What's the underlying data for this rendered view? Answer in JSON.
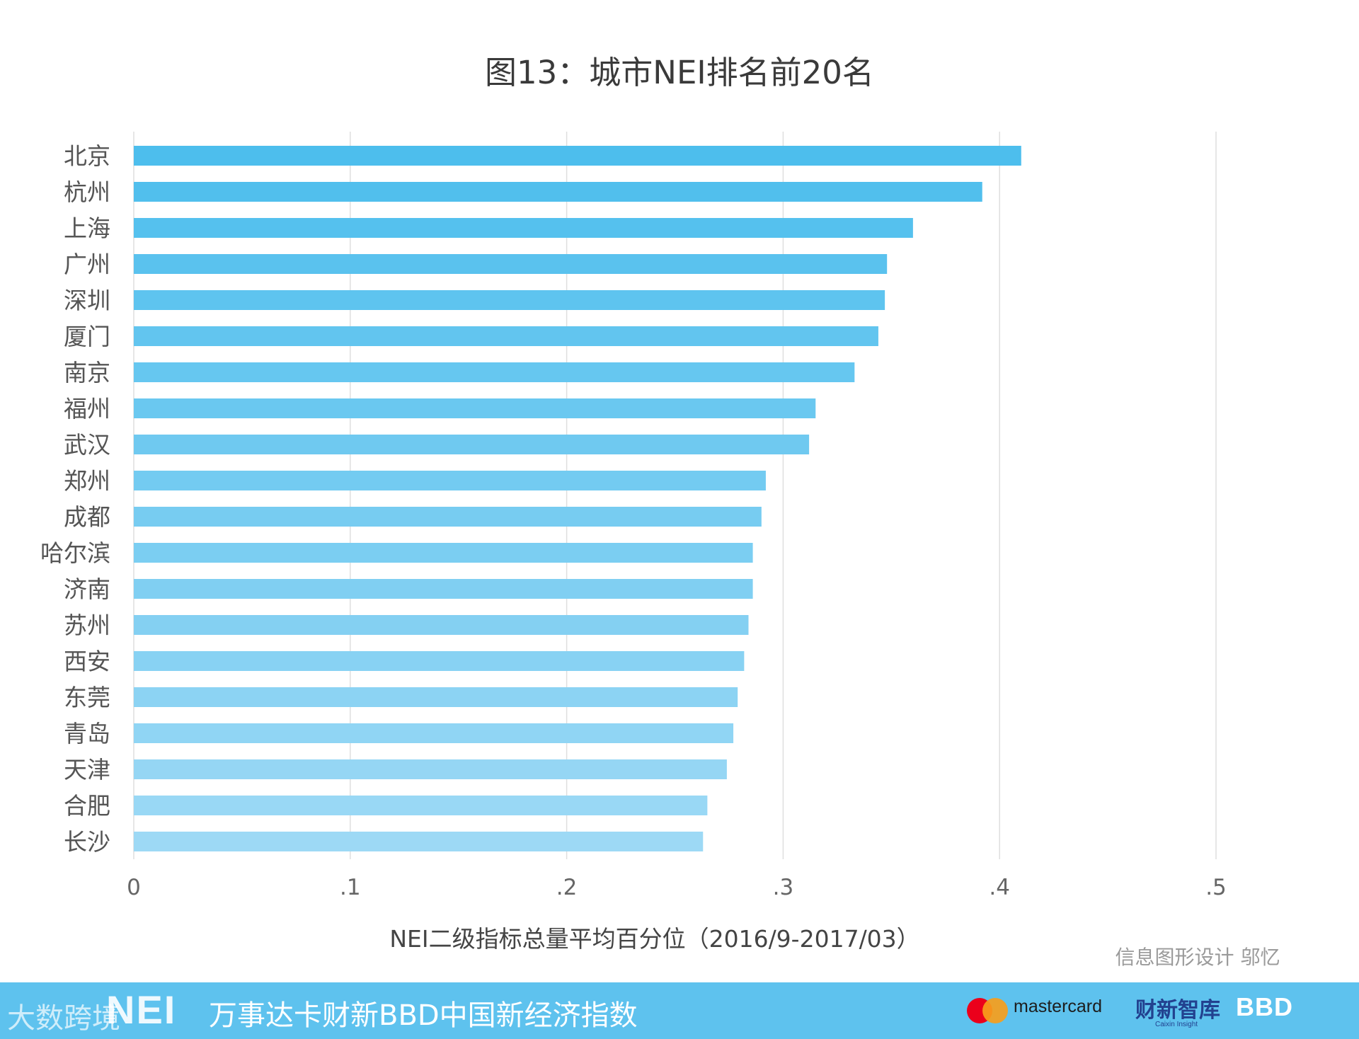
{
  "chart_data": {
    "type": "bar",
    "orientation": "horizontal",
    "title": "图13：城市NEI排名前20名",
    "xlabel": "NEI二级指标总量平均百分位（2016/9-2017/03）",
    "ylabel": "",
    "xlim": [
      0,
      0.5
    ],
    "xticks": [
      0,
      0.1,
      0.2,
      0.3,
      0.4,
      0.5
    ],
    "xtick_labels": [
      "0",
      ".1",
      ".2",
      ".3",
      ".4",
      ".5"
    ],
    "grid": true,
    "categories": [
      "北京",
      "杭州",
      "上海",
      "广州",
      "深圳",
      "厦门",
      "南京",
      "福州",
      "武汉",
      "郑州",
      "成都",
      "哈尔滨",
      "济南",
      "苏州",
      "西安",
      "东莞",
      "青岛",
      "天津",
      "合肥",
      "长沙"
    ],
    "values": [
      0.41,
      0.392,
      0.36,
      0.348,
      0.347,
      0.344,
      0.333,
      0.315,
      0.312,
      0.292,
      0.29,
      0.286,
      0.286,
      0.284,
      0.282,
      0.279,
      0.277,
      0.274,
      0.265,
      0.263
    ],
    "bar_color_top": "#4dbeed",
    "bar_color_bottom": "#9dd9f5"
  },
  "credit": "信息图形设计 邬忆",
  "footer": {
    "watermark": "大数跨境",
    "nei_logo": "NEI",
    "index_name": "万事达卡财新BBD中国新经济指数",
    "mastercard": "mastercard",
    "caixin": "财新智库",
    "caixin_sub": "Caixin Insight",
    "bbd": "BBD",
    "background": "#5ec2ee"
  }
}
